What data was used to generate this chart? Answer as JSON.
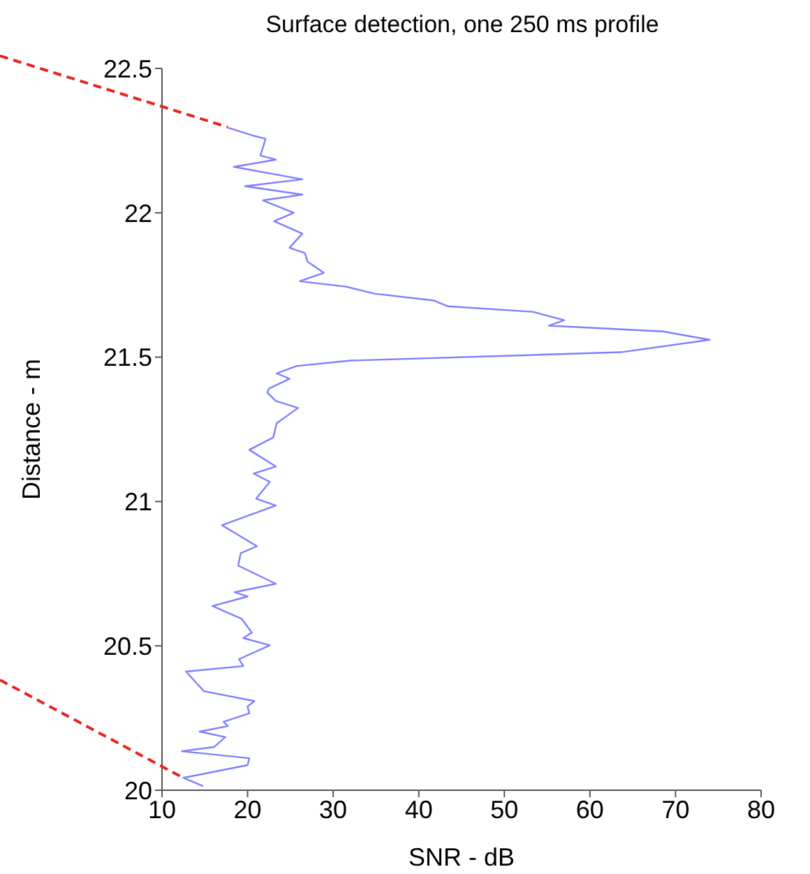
{
  "chart_data": {
    "type": "line",
    "title": "Surface detection, one 250 ms profile",
    "xlabel": "SNR - dB",
    "ylabel": "Distance - m",
    "xlim": [
      10,
      80
    ],
    "xticks": [
      10,
      20,
      30,
      40,
      50,
      60,
      70,
      80
    ],
    "ylim": [
      20,
      22.5
    ],
    "yticks": [
      20,
      20.5,
      21,
      21.5,
      22,
      22.5
    ],
    "grid": false,
    "marker": "none",
    "line_style": "solid",
    "series": [
      {
        "color": "#7f7fff",
        "x": [
          17.7,
          20.8,
          22.1,
          21.5,
          23.3,
          18.4,
          26.4,
          19.7,
          26.4,
          21.8,
          25.4,
          23.1,
          26.4,
          24.9,
          26.7,
          27.0,
          28.9,
          26.1,
          31.5,
          34.8,
          41.8,
          43.4,
          53.3,
          57.0,
          55.2,
          68.5,
          74.0,
          63.6,
          32.0,
          25.7,
          23.4,
          24.9,
          22.5,
          22.3,
          23.3,
          25.9,
          23.4,
          23.0,
          20.2,
          23.3,
          20.7,
          22.6,
          21.0,
          23.3,
          17.0,
          21.1,
          19.2,
          18.9,
          23.3,
          18.5,
          20.0,
          15.9,
          19.3,
          20.5,
          19.5,
          22.6,
          19.0,
          19.5,
          12.8,
          14.9,
          20.8,
          20.0,
          20.2,
          17.2,
          17.7,
          14.4,
          17.4,
          16.1,
          12.3,
          20.2,
          20.0,
          12.5,
          14.8
        ],
        "values": [
          22.295,
          22.266,
          22.256,
          22.198,
          22.184,
          22.159,
          22.116,
          22.092,
          22.063,
          22.043,
          22.0,
          21.971,
          21.928,
          21.879,
          21.86,
          21.831,
          21.792,
          21.763,
          21.744,
          21.72,
          21.696,
          21.676,
          21.657,
          21.628,
          21.609,
          21.589,
          21.56,
          21.517,
          21.488,
          21.469,
          21.444,
          21.425,
          21.391,
          21.377,
          21.348,
          21.324,
          21.271,
          21.222,
          21.179,
          21.121,
          21.097,
          21.068,
          21.01,
          20.986,
          20.918,
          20.845,
          20.821,
          20.778,
          20.715,
          20.686,
          20.671,
          20.638,
          20.594,
          20.546,
          20.527,
          20.502,
          20.454,
          20.43,
          20.411,
          20.343,
          20.309,
          20.29,
          20.266,
          20.237,
          20.222,
          20.203,
          20.184,
          20.15,
          20.135,
          20.111,
          20.087,
          20.043,
          20.014
        ]
      }
    ]
  }
}
